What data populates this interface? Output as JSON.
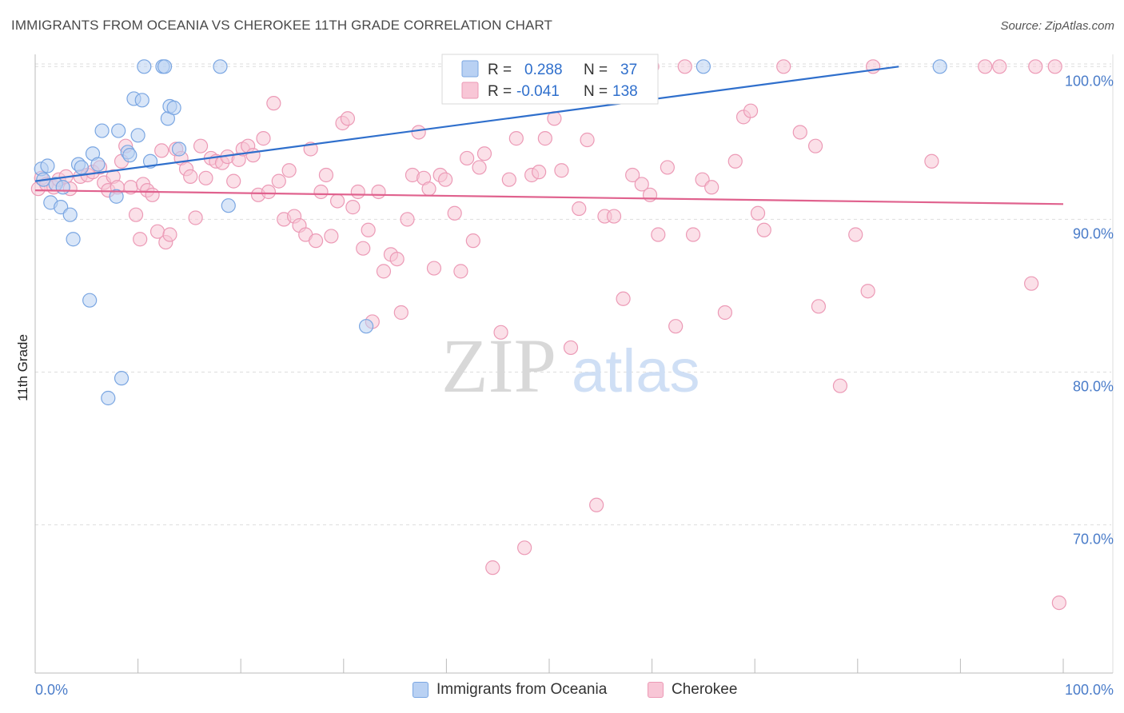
{
  "title": "IMMIGRANTS FROM OCEANIA VS CHEROKEE 11TH GRADE CORRELATION CHART",
  "source": "Source: ZipAtlas.com",
  "watermark": {
    "zip": "ZIP",
    "atlas": "atlas"
  },
  "colors": {
    "blue_fill": "#b9d1f3",
    "blue_stroke": "#7aa6e2",
    "blue_line": "#2f6fcc",
    "pink_fill": "#f8c6d6",
    "pink_stroke": "#ec9ab6",
    "pink_line": "#e0628e",
    "grid": "#dddddd",
    "tick_text": "#4a7cc9"
  },
  "legend_top": {
    "blue": {
      "r_label": "R =",
      "r_value": "0.288",
      "n_label": "N =",
      "n_value": "37"
    },
    "pink": {
      "r_label": "R =",
      "r_value": "-0.041",
      "n_label": "N =",
      "n_value": "138"
    }
  },
  "legend_bottom": [
    {
      "label": "Immigrants from Oceania",
      "color": "blue"
    },
    {
      "label": "Cherokee",
      "color": "pink"
    }
  ],
  "chart_data": {
    "type": "scatter",
    "title": "IMMIGRANTS FROM OCEANIA VS CHEROKEE 11TH GRADE CORRELATION CHART",
    "xlabel": "",
    "ylabel": "11th Grade",
    "xlim": [
      0,
      100
    ],
    "ylim": [
      60.3,
      100.8
    ],
    "x_ticks": [
      "0.0%",
      "100.0%"
    ],
    "y_ticks": [
      {
        "value": 100,
        "label": "100.0%"
      },
      {
        "value": 90,
        "label": "90.0%"
      },
      {
        "value": 80,
        "label": "80.0%"
      },
      {
        "value": 70,
        "label": "70.0%"
      }
    ],
    "grid": true,
    "legend_position": "top-center",
    "series": [
      {
        "name": "Immigrants from Oceania",
        "color": "blue",
        "r": 0.288,
        "n": 37,
        "trend": {
          "x": [
            0,
            84
          ],
          "y": [
            92.5,
            100.0
          ]
        },
        "points": [
          [
            0.6,
            93.3
          ],
          [
            0.8,
            92.6
          ],
          [
            1.2,
            93.5
          ],
          [
            1.5,
            91.1
          ],
          [
            2.0,
            92.3
          ],
          [
            2.5,
            90.8
          ],
          [
            2.7,
            92.1
          ],
          [
            3.4,
            90.3
          ],
          [
            3.7,
            88.7
          ],
          [
            4.2,
            93.6
          ],
          [
            4.5,
            93.4
          ],
          [
            5.3,
            84.7
          ],
          [
            5.6,
            94.3
          ],
          [
            6.1,
            93.6
          ],
          [
            6.5,
            95.8
          ],
          [
            7.1,
            78.3
          ],
          [
            7.9,
            91.5
          ],
          [
            8.1,
            95.8
          ],
          [
            8.4,
            79.6
          ],
          [
            9.0,
            94.4
          ],
          [
            9.2,
            94.2
          ],
          [
            9.6,
            97.9
          ],
          [
            10.0,
            95.5
          ],
          [
            10.4,
            97.8
          ],
          [
            10.6,
            100.0
          ],
          [
            11.2,
            93.8
          ],
          [
            12.4,
            100.0
          ],
          [
            12.6,
            100.0
          ],
          [
            12.9,
            96.6
          ],
          [
            13.1,
            97.4
          ],
          [
            13.5,
            97.3
          ],
          [
            14.0,
            94.6
          ],
          [
            18.0,
            100.0
          ],
          [
            18.8,
            90.9
          ],
          [
            32.2,
            83.0
          ],
          [
            65.0,
            100.0
          ],
          [
            88.0,
            100.0
          ]
        ]
      },
      {
        "name": "Cherokee",
        "color": "pink",
        "r": -0.041,
        "n": 138,
        "trend": {
          "x": [
            0,
            100
          ],
          "y": [
            91.9,
            91.0
          ]
        },
        "points": [
          [
            0.3,
            92.0
          ],
          [
            0.6,
            92.7
          ],
          [
            1.1,
            92.3
          ],
          [
            1.8,
            92.1
          ],
          [
            2.3,
            92.6
          ],
          [
            3.0,
            92.8
          ],
          [
            3.4,
            92.0
          ],
          [
            4.4,
            92.8
          ],
          [
            5.1,
            92.9
          ],
          [
            5.6,
            93.1
          ],
          [
            6.3,
            93.4
          ],
          [
            6.7,
            92.4
          ],
          [
            7.1,
            91.9
          ],
          [
            7.6,
            92.8
          ],
          [
            8.0,
            92.1
          ],
          [
            8.4,
            93.8
          ],
          [
            8.8,
            94.8
          ],
          [
            9.3,
            92.1
          ],
          [
            9.8,
            90.3
          ],
          [
            10.2,
            88.7
          ],
          [
            10.5,
            92.3
          ],
          [
            10.9,
            91.9
          ],
          [
            11.4,
            91.6
          ],
          [
            11.9,
            89.2
          ],
          [
            12.3,
            94.5
          ],
          [
            12.7,
            88.5
          ],
          [
            13.1,
            89.0
          ],
          [
            13.7,
            94.6
          ],
          [
            14.2,
            94.0
          ],
          [
            14.7,
            93.3
          ],
          [
            15.1,
            92.8
          ],
          [
            15.6,
            90.1
          ],
          [
            16.1,
            94.8
          ],
          [
            16.6,
            92.7
          ],
          [
            17.1,
            94.0
          ],
          [
            17.6,
            93.8
          ],
          [
            18.2,
            93.7
          ],
          [
            18.7,
            94.1
          ],
          [
            19.3,
            92.5
          ],
          [
            19.8,
            93.9
          ],
          [
            20.2,
            94.6
          ],
          [
            20.7,
            94.8
          ],
          [
            21.2,
            94.2
          ],
          [
            21.7,
            91.6
          ],
          [
            22.2,
            95.3
          ],
          [
            22.7,
            91.8
          ],
          [
            23.2,
            97.6
          ],
          [
            23.7,
            92.5
          ],
          [
            24.2,
            90.0
          ],
          [
            24.7,
            93.2
          ],
          [
            25.2,
            90.2
          ],
          [
            25.7,
            89.6
          ],
          [
            26.3,
            89.0
          ],
          [
            26.8,
            94.6
          ],
          [
            27.3,
            88.6
          ],
          [
            27.8,
            91.8
          ],
          [
            28.3,
            92.9
          ],
          [
            28.8,
            88.9
          ],
          [
            29.4,
            91.2
          ],
          [
            29.9,
            96.3
          ],
          [
            30.4,
            96.6
          ],
          [
            30.9,
            90.8
          ],
          [
            31.4,
            91.8
          ],
          [
            31.9,
            88.1
          ],
          [
            32.4,
            89.3
          ],
          [
            32.8,
            83.3
          ],
          [
            33.4,
            91.8
          ],
          [
            33.9,
            86.6
          ],
          [
            34.6,
            87.7
          ],
          [
            35.2,
            87.4
          ],
          [
            35.6,
            83.9
          ],
          [
            36.2,
            90.0
          ],
          [
            36.7,
            92.9
          ],
          [
            37.3,
            95.7
          ],
          [
            37.8,
            92.7
          ],
          [
            38.3,
            92.0
          ],
          [
            38.8,
            86.8
          ],
          [
            39.4,
            92.9
          ],
          [
            39.9,
            92.6
          ],
          [
            40.8,
            90.4
          ],
          [
            41.4,
            86.6
          ],
          [
            42.0,
            94.0
          ],
          [
            42.6,
            88.6
          ],
          [
            43.2,
            93.4
          ],
          [
            43.7,
            94.3
          ],
          [
            44.5,
            67.2
          ],
          [
            45.3,
            82.6
          ],
          [
            46.1,
            92.6
          ],
          [
            46.8,
            95.3
          ],
          [
            47.6,
            68.5
          ],
          [
            48.3,
            92.9
          ],
          [
            49.0,
            93.1
          ],
          [
            49.6,
            95.3
          ],
          [
            50.5,
            96.6
          ],
          [
            51.2,
            93.2
          ],
          [
            52.1,
            81.6
          ],
          [
            52.9,
            90.7
          ],
          [
            53.7,
            95.2
          ],
          [
            54.6,
            71.3
          ],
          [
            55.4,
            90.2
          ],
          [
            56.3,
            90.2
          ],
          [
            57.2,
            84.8
          ],
          [
            58.1,
            92.9
          ],
          [
            59.0,
            92.3
          ],
          [
            59.8,
            91.6
          ],
          [
            60.6,
            89.0
          ],
          [
            61.5,
            93.4
          ],
          [
            62.3,
            83.0
          ],
          [
            63.2,
            100.0
          ],
          [
            64.0,
            89.0
          ],
          [
            64.9,
            92.6
          ],
          [
            65.8,
            92.1
          ],
          [
            67.1,
            83.9
          ],
          [
            68.1,
            93.8
          ],
          [
            68.9,
            96.7
          ],
          [
            69.6,
            97.1
          ],
          [
            70.3,
            90.4
          ],
          [
            70.9,
            89.3
          ],
          [
            72.8,
            100.0
          ],
          [
            74.4,
            95.7
          ],
          [
            75.9,
            94.8
          ],
          [
            76.2,
            84.3
          ],
          [
            78.3,
            79.1
          ],
          [
            79.8,
            89.0
          ],
          [
            81.0,
            85.3
          ],
          [
            81.5,
            100.0
          ],
          [
            87.2,
            93.8
          ],
          [
            92.4,
            100.0
          ],
          [
            93.8,
            100.0
          ],
          [
            96.9,
            85.8
          ],
          [
            97.3,
            100.0
          ],
          [
            99.2,
            100.0
          ],
          [
            99.6,
            64.9
          ],
          [
            50.0,
            100.0
          ],
          [
            55.0,
            100.0
          ],
          [
            60.0,
            100.0
          ]
        ]
      }
    ]
  }
}
